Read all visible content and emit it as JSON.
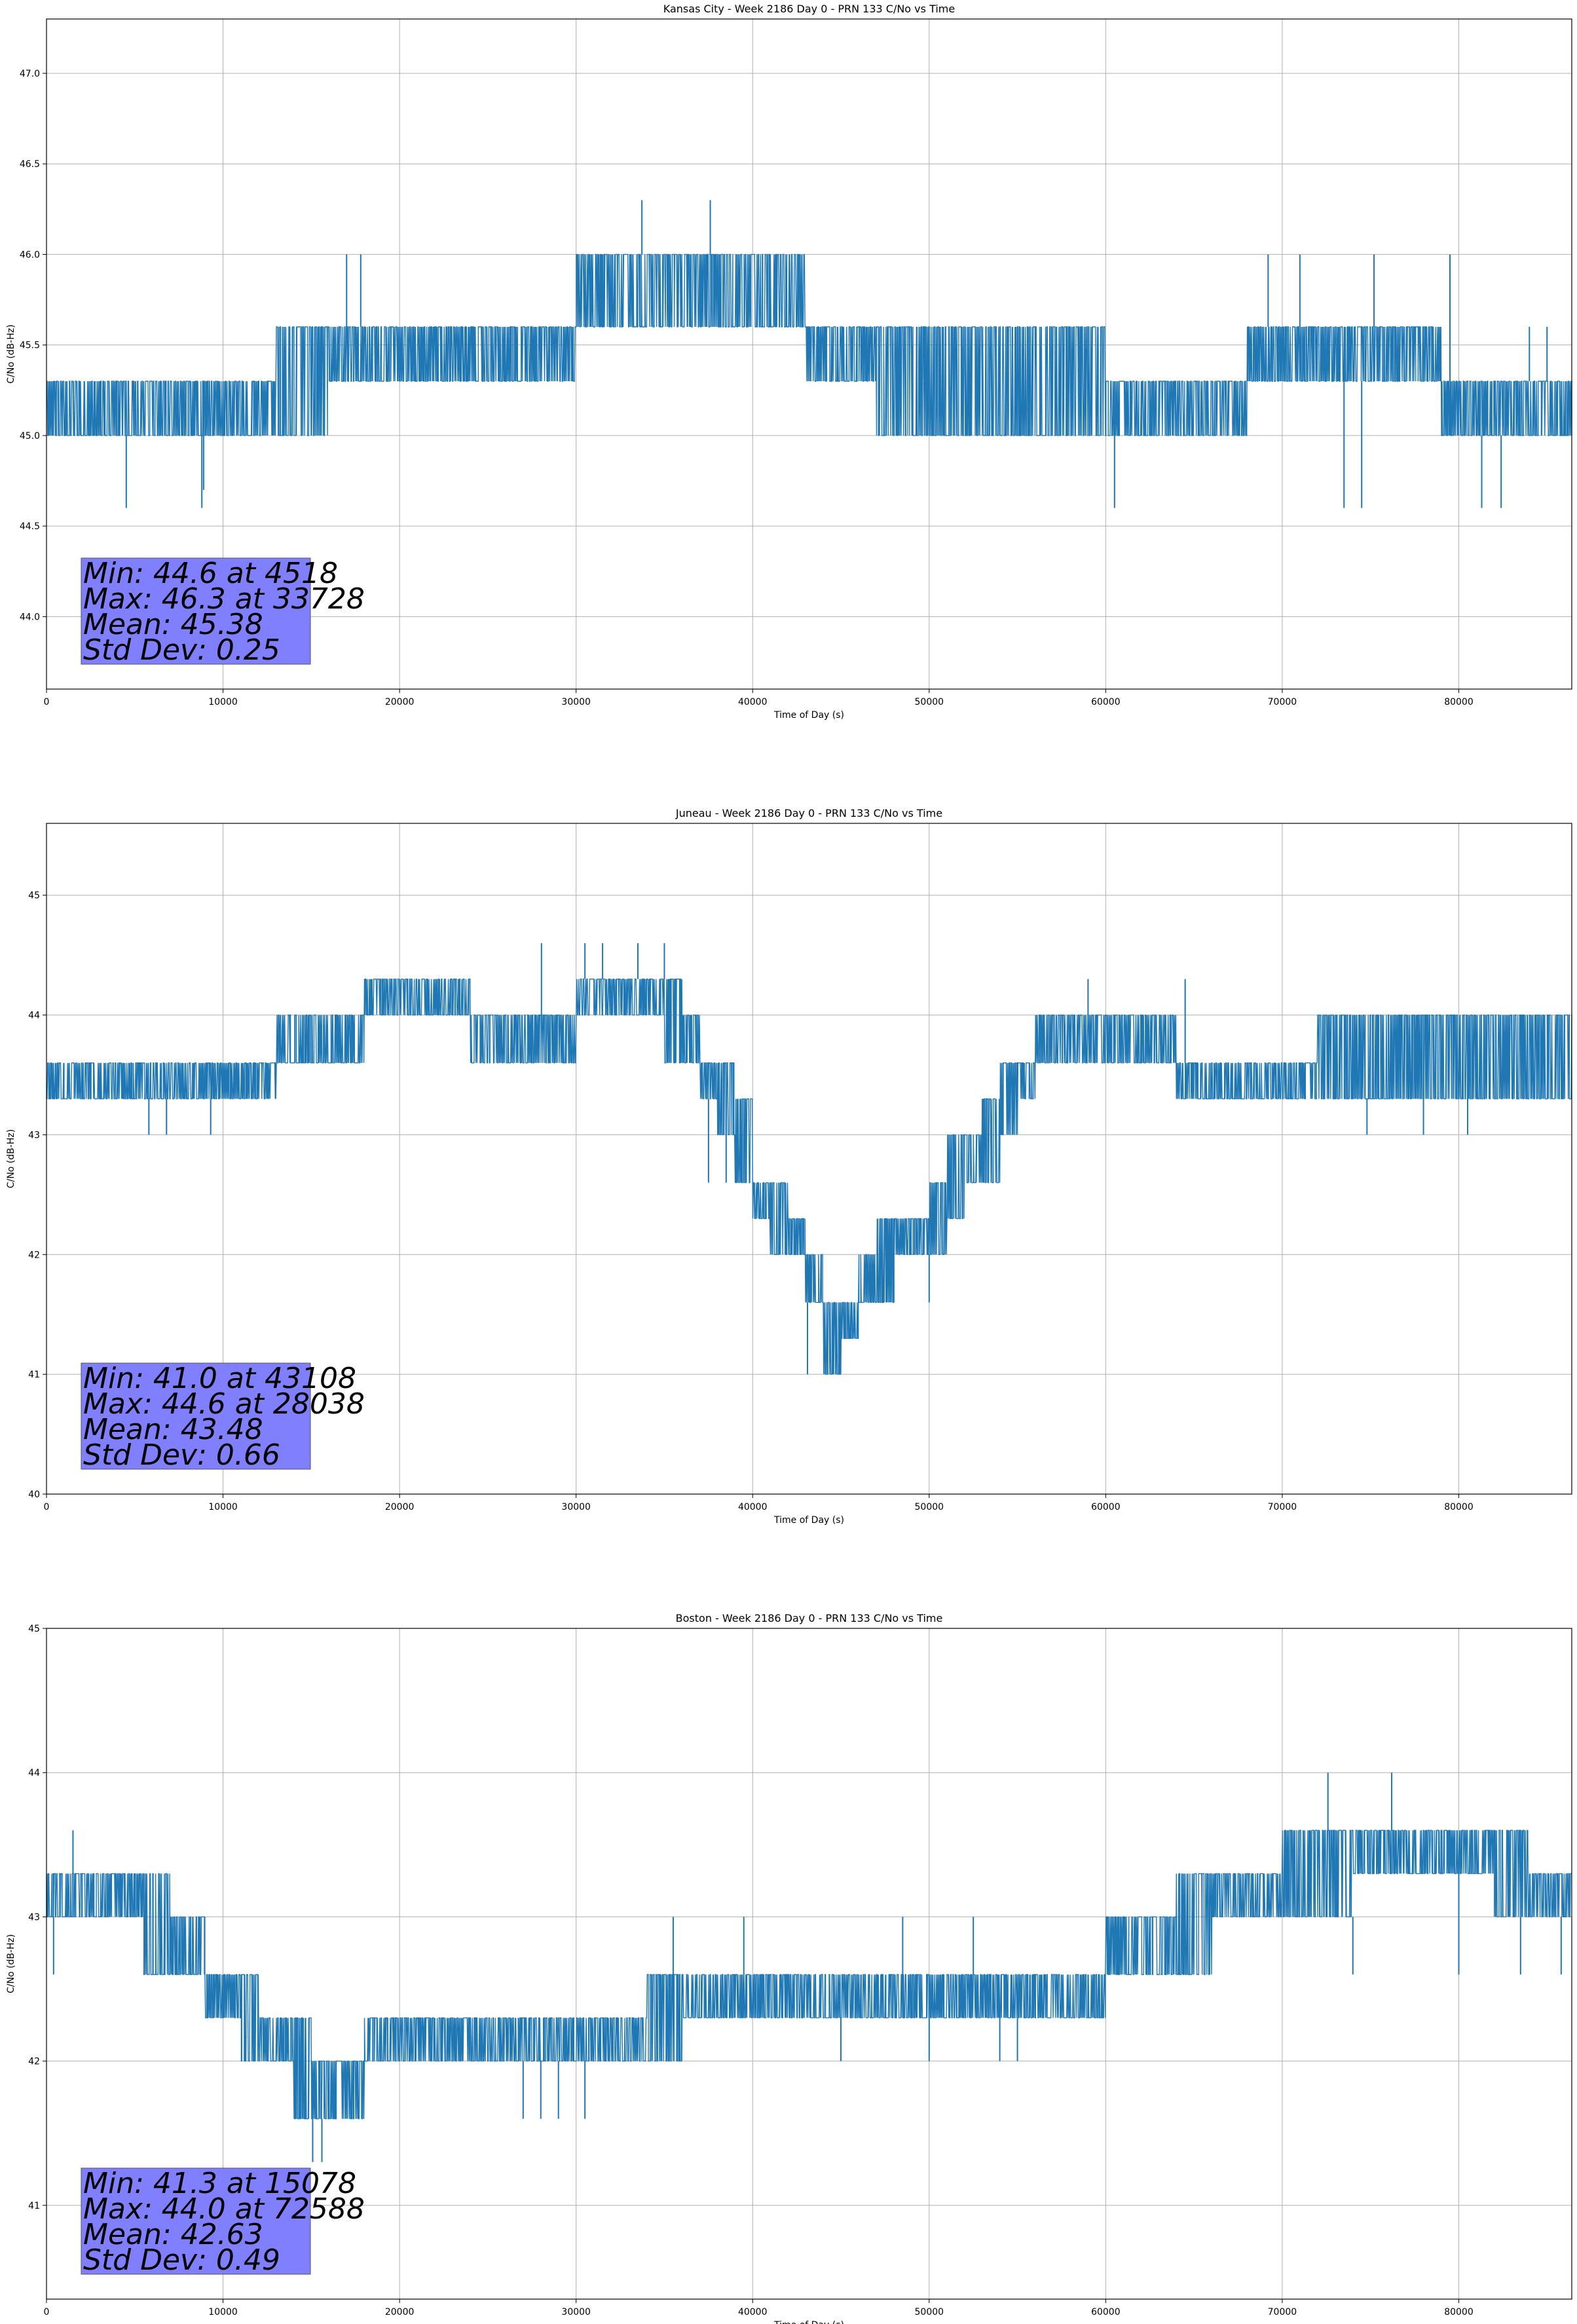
{
  "chart_data": [
    {
      "type": "line",
      "title": "Kansas City - Week 2186 Day 0 - PRN 133 C/No vs Time",
      "xlabel": "Time of Day (s)",
      "ylabel": "C/No (dB-Hz)",
      "xlim": [
        0,
        86400
      ],
      "ylim": [
        43.6,
        47.3
      ],
      "xticks": [
        0,
        10000,
        20000,
        30000,
        40000,
        50000,
        60000,
        70000,
        80000
      ],
      "yticks": [
        "44.0",
        "44.5",
        "45.0",
        "45.5",
        "46.0",
        "46.5",
        "47.0"
      ],
      "grid": true,
      "color": "#1f77b4",
      "series": [
        {
          "x": [
            0,
            3000,
            6000,
            9000,
            11000,
            13000,
            16000,
            20000,
            24000,
            27000,
            29000,
            30000,
            32000,
            34000,
            36000,
            38000,
            40000,
            42000,
            43000,
            45000,
            47000,
            50000,
            53000,
            56000,
            60000,
            64000,
            68000,
            72000,
            76000,
            79000,
            81000,
            84000,
            86400
          ],
          "low": [
            45.0,
            45.0,
            45.0,
            45.0,
            45.0,
            45.0,
            45.3,
            45.3,
            45.3,
            45.3,
            45.3,
            45.6,
            45.6,
            45.6,
            45.6,
            45.6,
            45.6,
            45.6,
            45.3,
            45.3,
            45.0,
            45.0,
            45.0,
            45.0,
            45.0,
            45.0,
            45.3,
            45.3,
            45.3,
            45.0,
            45.0,
            45.0,
            45.0
          ],
          "high": [
            45.3,
            45.3,
            45.3,
            45.3,
            45.3,
            45.6,
            45.6,
            45.6,
            45.6,
            45.6,
            45.6,
            46.0,
            46.0,
            46.0,
            46.0,
            46.0,
            46.0,
            46.0,
            45.6,
            45.6,
            45.6,
            45.6,
            45.6,
            45.6,
            45.3,
            45.3,
            45.6,
            45.6,
            45.6,
            45.3,
            45.3,
            45.3,
            45.3
          ]
        }
      ],
      "spikes": [
        [
          4518,
          44.6
        ],
        [
          8800,
          44.6
        ],
        [
          8900,
          44.7
        ],
        [
          33728,
          46.3
        ],
        [
          37600,
          46.3
        ],
        [
          60500,
          44.6
        ],
        [
          73500,
          44.6
        ],
        [
          74500,
          44.6
        ],
        [
          81300,
          44.6
        ],
        [
          82400,
          44.6
        ],
        [
          17000,
          46.0
        ],
        [
          17800,
          46.0
        ],
        [
          69200,
          46.0
        ],
        [
          71000,
          46.0
        ],
        [
          75200,
          46.0
        ],
        [
          79500,
          46.0
        ],
        [
          84000,
          45.6
        ],
        [
          85000,
          45.6
        ]
      ],
      "stats": {
        "min": "Min: 44.6 at 4518",
        "max": "Max: 46.3 at 33728",
        "mean": "Mean: 45.38",
        "std": "Std Dev: 0.25"
      }
    },
    {
      "type": "line",
      "title": "Juneau - Week 2186 Day 0 - PRN 133 C/No vs Time",
      "xlabel": "Time of Day (s)",
      "ylabel": "C/No (dB-Hz)",
      "xlim": [
        0,
        86400
      ],
      "ylim": [
        40.0,
        45.6
      ],
      "xticks": [
        0,
        10000,
        20000,
        30000,
        40000,
        50000,
        60000,
        70000,
        80000
      ],
      "yticks": [
        "40",
        "41",
        "42",
        "43",
        "44",
        "45"
      ],
      "grid": true,
      "color": "#1f77b4",
      "series": [
        {
          "x": [
            0,
            3000,
            6000,
            9000,
            11000,
            13000,
            15000,
            16000,
            18000,
            20000,
            22000,
            24000,
            26000,
            28000,
            30000,
            32000,
            34000,
            35000,
            36000,
            37000,
            38000,
            39000,
            40000,
            41000,
            42000,
            43000,
            44000,
            45000,
            46000,
            47000,
            48000,
            49000,
            50000,
            51000,
            52000,
            53000,
            54000,
            55000,
            56000,
            58000,
            60000,
            62000,
            64000,
            66000,
            68000,
            70000,
            72000,
            74000,
            76000,
            78000,
            80000,
            82000,
            84000,
            86400
          ],
          "low": [
            43.3,
            43.3,
            43.3,
            43.3,
            43.3,
            43.6,
            43.6,
            43.6,
            44.0,
            44.0,
            44.0,
            43.6,
            43.6,
            43.6,
            44.0,
            44.0,
            44.0,
            43.6,
            43.6,
            43.3,
            43.0,
            42.6,
            42.3,
            42.0,
            42.0,
            41.6,
            41.0,
            41.3,
            41.6,
            41.6,
            42.0,
            42.0,
            42.0,
            42.3,
            42.6,
            42.6,
            43.0,
            43.3,
            43.6,
            43.6,
            43.6,
            43.6,
            43.3,
            43.3,
            43.3,
            43.3,
            43.3,
            43.3,
            43.3,
            43.3,
            43.3,
            43.3,
            43.3,
            43.3
          ],
          "high": [
            43.6,
            43.6,
            43.6,
            43.6,
            43.6,
            44.0,
            44.0,
            44.0,
            44.3,
            44.3,
            44.3,
            44.0,
            44.0,
            44.0,
            44.3,
            44.3,
            44.3,
            44.3,
            44.0,
            43.6,
            43.6,
            43.3,
            42.6,
            42.6,
            42.3,
            42.0,
            41.6,
            41.6,
            42.0,
            42.3,
            42.3,
            42.3,
            42.6,
            43.0,
            43.0,
            43.3,
            43.6,
            43.6,
            44.0,
            44.0,
            44.0,
            44.0,
            43.6,
            43.6,
            43.6,
            43.6,
            44.0,
            44.0,
            44.0,
            44.0,
            44.0,
            44.0,
            44.0,
            44.0
          ]
        }
      ],
      "spikes": [
        [
          43108,
          41.0
        ],
        [
          28038,
          44.6
        ],
        [
          30500,
          44.6
        ],
        [
          31500,
          44.6
        ],
        [
          33500,
          44.6
        ],
        [
          35000,
          44.6
        ],
        [
          5800,
          43.0
        ],
        [
          6800,
          43.0
        ],
        [
          9300,
          43.0
        ],
        [
          37500,
          42.6
        ],
        [
          38500,
          42.6
        ],
        [
          74800,
          43.0
        ],
        [
          78000,
          43.0
        ],
        [
          80500,
          43.0
        ],
        [
          59000,
          44.3
        ],
        [
          64500,
          44.3
        ],
        [
          48000,
          41.6
        ],
        [
          50000,
          41.6
        ]
      ],
      "stats": {
        "min": "Min: 41.0 at 43108",
        "max": "Max: 44.6 at 28038",
        "mean": "Mean: 43.48",
        "std": "Std Dev: 0.66"
      }
    },
    {
      "type": "line",
      "title": "Boston - Week 2186 Day 0 - PRN 133 C/No vs Time",
      "xlabel": "Time of Day (s)",
      "ylabel": "C/No (dB-Hz)",
      "xlim": [
        0,
        86400
      ],
      "ylim": [
        40.35,
        45.0
      ],
      "xticks": [
        0,
        10000,
        20000,
        30000,
        40000,
        50000,
        60000,
        70000,
        80000
      ],
      "yticks": [
        "41",
        "42",
        "43",
        "44",
        "45"
      ],
      "grid": true,
      "color": "#1f77b4",
      "series": [
        {
          "x": [
            0,
            2000,
            4000,
            5500,
            7000,
            8000,
            9000,
            10000,
            11000,
            12000,
            13000,
            14000,
            15000,
            16000,
            17000,
            18000,
            20000,
            22000,
            24000,
            26000,
            28000,
            30000,
            32000,
            34000,
            36000,
            38000,
            40000,
            42000,
            44000,
            46000,
            48000,
            50000,
            52000,
            54000,
            56000,
            58000,
            60000,
            62000,
            64000,
            66000,
            68000,
            70000,
            72000,
            74000,
            76000,
            78000,
            80000,
            82000,
            84000,
            86400
          ],
          "low": [
            43.0,
            43.0,
            43.0,
            42.6,
            42.6,
            42.6,
            42.3,
            42.3,
            42.0,
            42.0,
            42.0,
            41.6,
            41.6,
            41.6,
            41.6,
            42.0,
            42.0,
            42.0,
            42.0,
            42.0,
            42.0,
            42.0,
            42.0,
            42.0,
            42.3,
            42.3,
            42.3,
            42.3,
            42.3,
            42.3,
            42.3,
            42.3,
            42.3,
            42.3,
            42.3,
            42.3,
            42.6,
            42.6,
            42.6,
            43.0,
            43.0,
            43.0,
            43.0,
            43.3,
            43.3,
            43.3,
            43.3,
            43.0,
            43.0,
            43.0
          ],
          "high": [
            43.3,
            43.3,
            43.3,
            43.3,
            43.0,
            43.0,
            42.6,
            42.6,
            42.6,
            42.3,
            42.3,
            42.3,
            42.0,
            42.0,
            42.0,
            42.3,
            42.3,
            42.3,
            42.3,
            42.3,
            42.3,
            42.3,
            42.3,
            42.6,
            42.6,
            42.6,
            42.6,
            42.6,
            42.6,
            42.6,
            42.6,
            42.6,
            42.6,
            42.6,
            42.6,
            42.6,
            43.0,
            43.0,
            43.3,
            43.3,
            43.3,
            43.6,
            43.6,
            43.6,
            43.6,
            43.6,
            43.6,
            43.6,
            43.3,
            43.3
          ]
        }
      ],
      "spikes": [
        [
          15078,
          41.3
        ],
        [
          15600,
          41.3
        ],
        [
          72588,
          44.0
        ],
        [
          76200,
          44.0
        ],
        [
          1500,
          43.6
        ],
        [
          400,
          42.6
        ],
        [
          85800,
          42.6
        ],
        [
          27000,
          41.6
        ],
        [
          28000,
          41.6
        ],
        [
          29000,
          41.6
        ],
        [
          30500,
          41.6
        ],
        [
          45000,
          42.0
        ],
        [
          50000,
          42.0
        ],
        [
          54000,
          42.0
        ],
        [
          55000,
          42.0
        ],
        [
          74000,
          42.6
        ],
        [
          80000,
          42.6
        ],
        [
          83500,
          42.6
        ],
        [
          35500,
          43.0
        ],
        [
          39500,
          43.0
        ],
        [
          48500,
          43.0
        ],
        [
          52500,
          43.0
        ]
      ],
      "stats": {
        "min": "Min: 41.3 at 15078",
        "max": "Max: 44.0 at 72588",
        "mean": "Mean: 42.63",
        "std": "Std Dev: 0.49"
      }
    }
  ]
}
